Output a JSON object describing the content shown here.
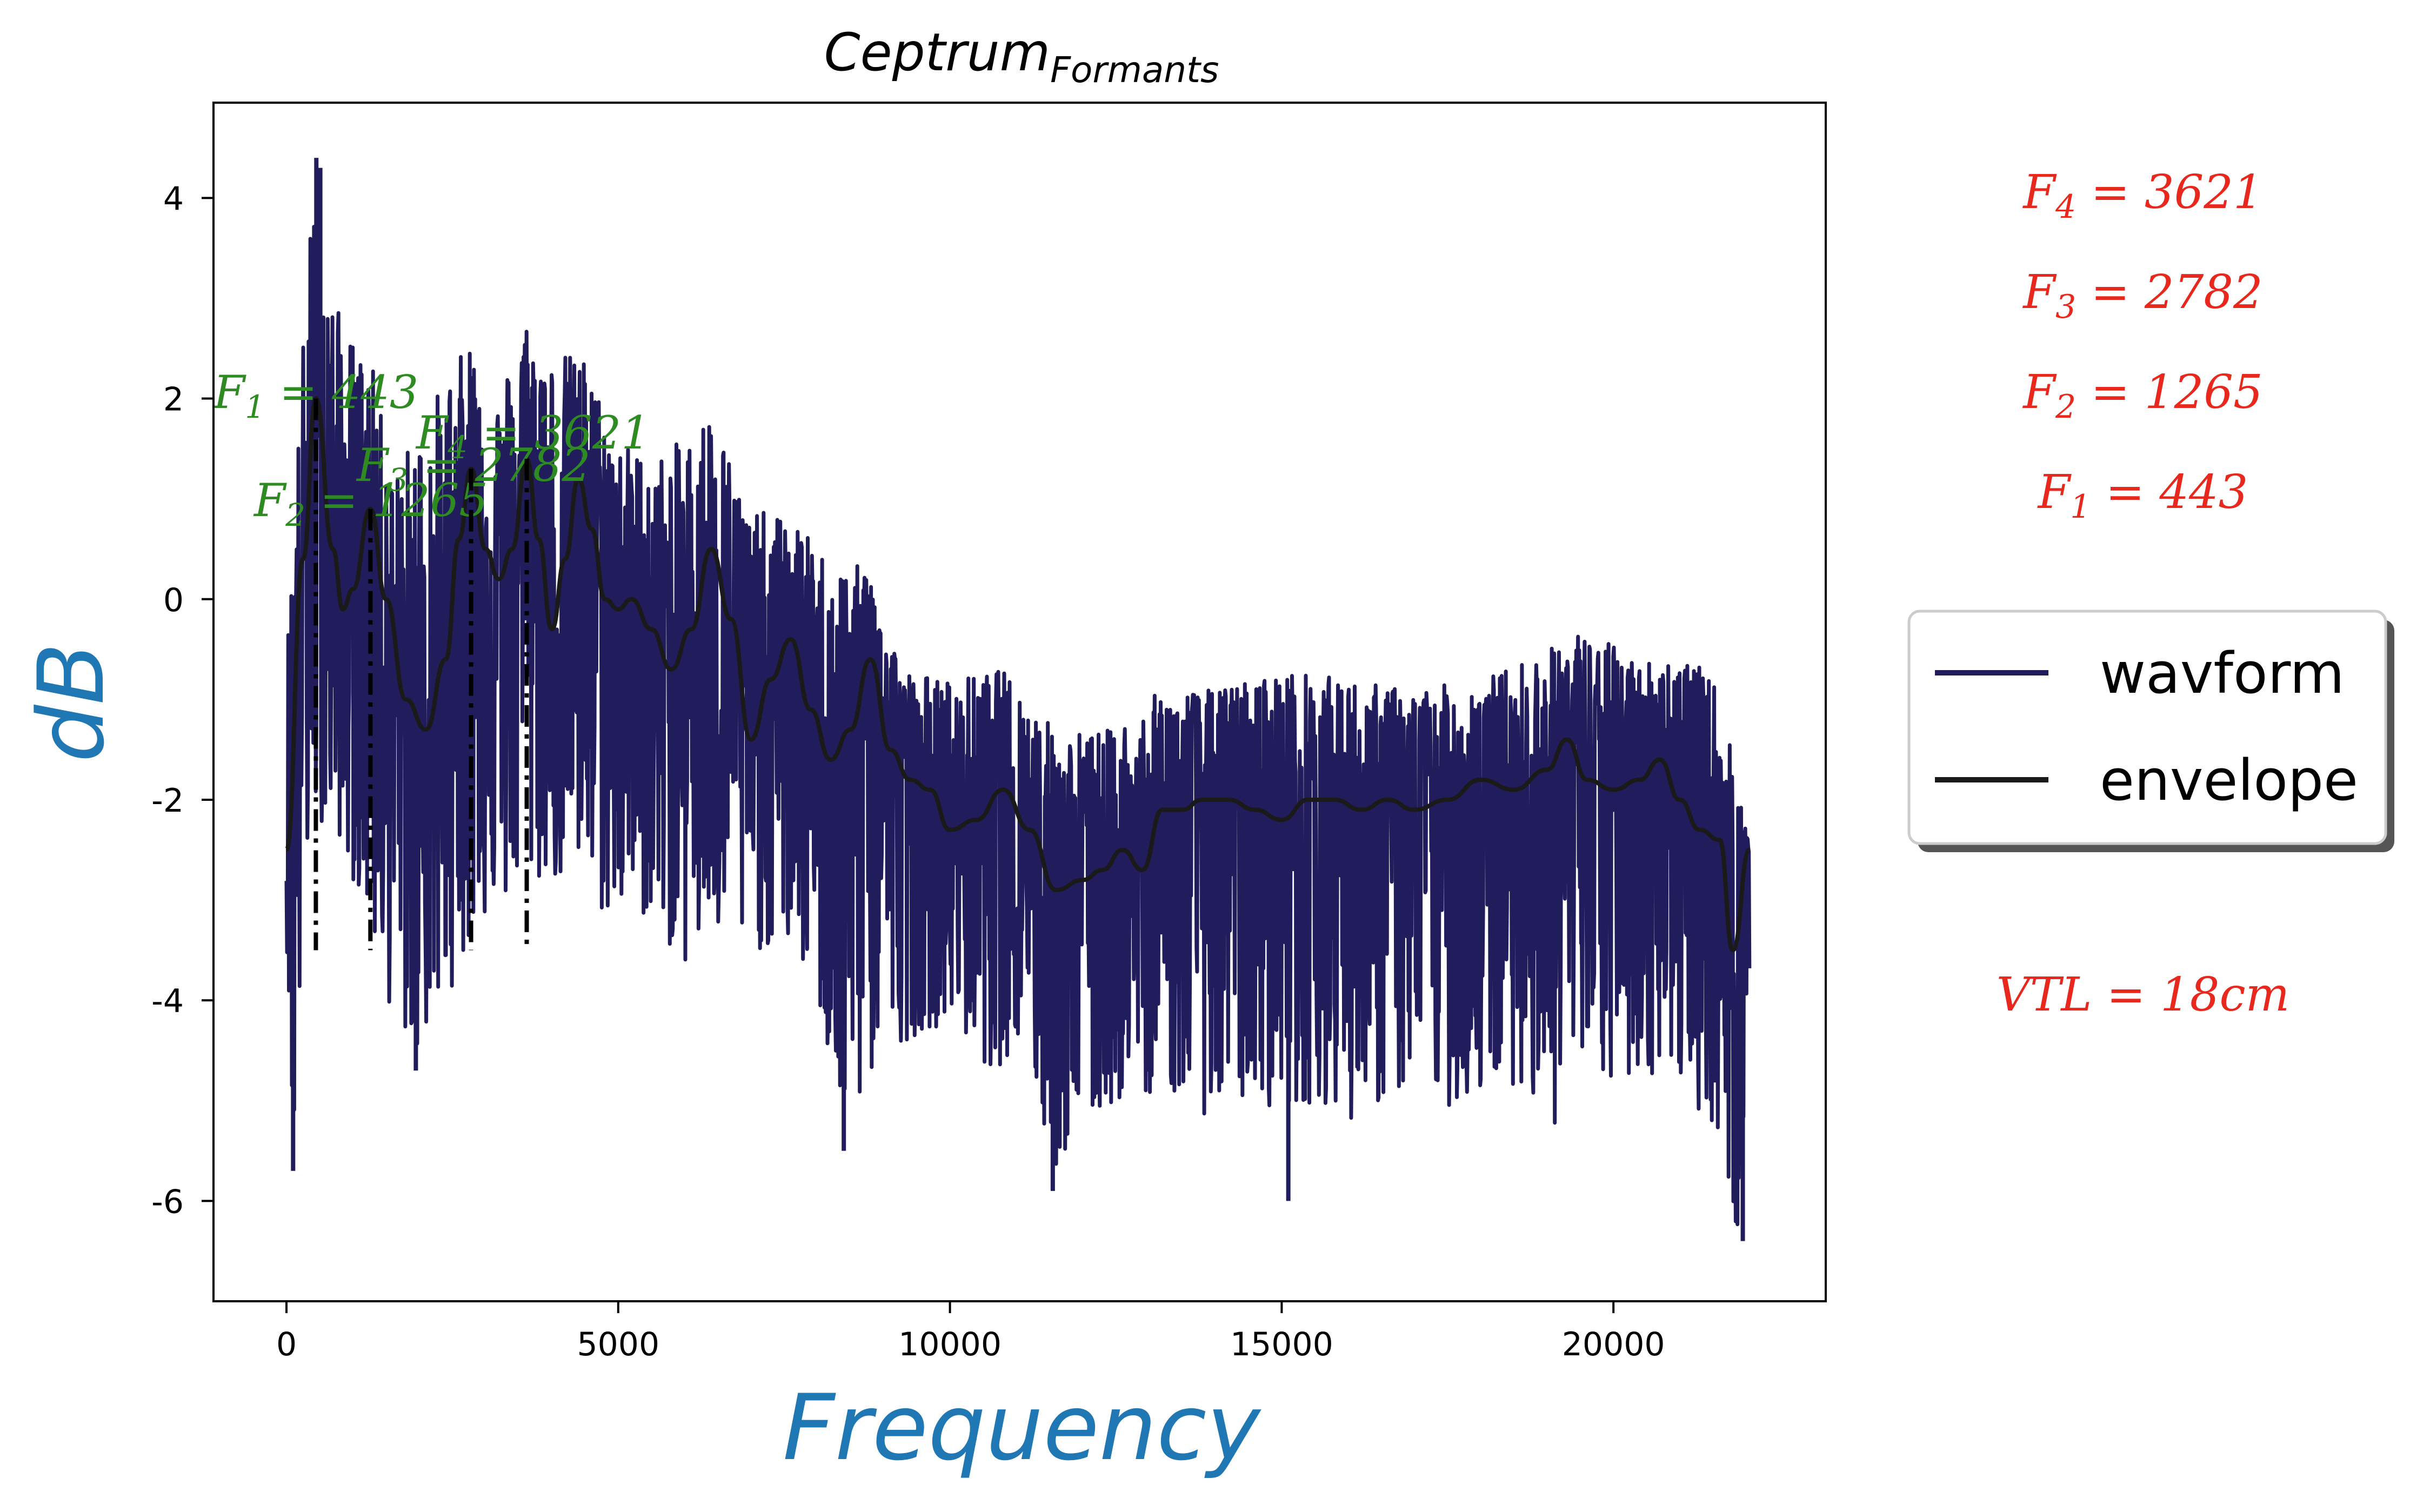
{
  "chart_data": {
    "type": "line",
    "title_main": "Ceptrum",
    "title_sub": "Formants",
    "xlabel": "Frequency",
    "ylabel": "dB",
    "xlim": [
      -1100,
      23200
    ],
    "ylim": [
      -7.0,
      4.95
    ],
    "x_ticks": [
      0,
      5000,
      10000,
      15000,
      20000
    ],
    "x_tick_labels": [
      "0",
      "5000",
      "10000",
      "15000",
      "20000"
    ],
    "y_ticks": [
      4,
      2,
      0,
      -2,
      -4,
      -6
    ],
    "y_tick_labels": [
      "4",
      "2",
      "0",
      "-2",
      "-4",
      "-6"
    ],
    "grid": false,
    "legend_position": "right",
    "colors": {
      "waveform": "#211c5c",
      "envelope": "#1a1a1a",
      "annotation": "#2e8b22",
      "side_text": "#e8281c",
      "axis_label": "#1f77b4"
    },
    "series": [
      {
        "name": "wavform",
        "note_shape": "noisy spectrum around the envelope",
        "upper": [
          [
            0,
            -0.5
          ],
          [
            300,
            3.2
          ],
          [
            450,
            4.4
          ],
          [
            700,
            3.0
          ],
          [
            1000,
            2.6
          ],
          [
            1300,
            2.3
          ],
          [
            1600,
            1.2
          ],
          [
            2000,
            1.8
          ],
          [
            2400,
            2.2
          ],
          [
            2800,
            2.6
          ],
          [
            3100,
            1.9
          ],
          [
            3600,
            2.8
          ],
          [
            4000,
            2.5
          ],
          [
            4500,
            2.4
          ],
          [
            5000,
            1.6
          ],
          [
            5500,
            1.4
          ],
          [
            6000,
            1.6
          ],
          [
            6400,
            1.9
          ],
          [
            7000,
            0.9
          ],
          [
            7600,
            0.8
          ],
          [
            8200,
            0.4
          ],
          [
            8800,
            0.3
          ],
          [
            9300,
            -0.7
          ],
          [
            10000,
            -0.8
          ],
          [
            10800,
            -0.7
          ],
          [
            11600,
            -1.3
          ],
          [
            12400,
            -1.3
          ],
          [
            13200,
            -0.9
          ],
          [
            14000,
            -0.9
          ],
          [
            15000,
            -0.7
          ],
          [
            16000,
            -0.8
          ],
          [
            17000,
            -0.9
          ],
          [
            18000,
            -0.8
          ],
          [
            19000,
            -0.5
          ],
          [
            19500,
            -0.3
          ],
          [
            20500,
            -0.6
          ],
          [
            21000,
            -0.5
          ],
          [
            21500,
            -0.8
          ],
          [
            21800,
            -1.5
          ],
          [
            22050,
            -2.5
          ]
        ],
        "lower": [
          [
            0,
            -3.3
          ],
          [
            100,
            -5.8
          ],
          [
            300,
            -2.9
          ],
          [
            500,
            -2.2
          ],
          [
            800,
            -2.4
          ],
          [
            1200,
            -3.2
          ],
          [
            1500,
            -4.0
          ],
          [
            1900,
            -4.6
          ],
          [
            2200,
            -4.3
          ],
          [
            2600,
            -3.7
          ],
          [
            3000,
            -3.2
          ],
          [
            3500,
            -3.0
          ],
          [
            4000,
            -2.8
          ],
          [
            4800,
            -3.2
          ],
          [
            5500,
            -3.2
          ],
          [
            6000,
            -3.7
          ],
          [
            6500,
            -3.5
          ],
          [
            7000,
            -3.5
          ],
          [
            7600,
            -3.5
          ],
          [
            8000,
            -4.0
          ],
          [
            8400,
            -5.5
          ],
          [
            9000,
            -4.5
          ],
          [
            10000,
            -4.2
          ],
          [
            10600,
            -4.7
          ],
          [
            11200,
            -4.5
          ],
          [
            11500,
            -5.8
          ],
          [
            12000,
            -5.3
          ],
          [
            12600,
            -5.0
          ],
          [
            13200,
            -4.9
          ],
          [
            14000,
            -5.2
          ],
          [
            14500,
            -5.0
          ],
          [
            15000,
            -5.1
          ],
          [
            15600,
            -5.0
          ],
          [
            16000,
            -5.2
          ],
          [
            17000,
            -4.9
          ],
          [
            17600,
            -5.1
          ],
          [
            18600,
            -4.8
          ],
          [
            19000,
            -5.4
          ],
          [
            19500,
            -4.8
          ],
          [
            20000,
            -4.9
          ],
          [
            20800,
            -4.7
          ],
          [
            21200,
            -5.0
          ],
          [
            21600,
            -5.4
          ],
          [
            21900,
            -6.5
          ],
          [
            22050,
            -4.0
          ]
        ],
        "spikes": [
          [
            100,
            -5.7
          ],
          [
            450,
            4.4
          ],
          [
            510,
            4.3
          ],
          [
            11550,
            -5.9
          ],
          [
            15100,
            -6.0
          ],
          [
            21950,
            -6.4
          ],
          [
            8400,
            -5.5
          ],
          [
            1950,
            -4.7
          ]
        ]
      },
      {
        "name": "envelope",
        "x": [
          0,
          250,
          443,
          700,
          850,
          1000,
          1265,
          1500,
          1800,
          2100,
          2400,
          2600,
          2782,
          3000,
          3200,
          3400,
          3621,
          3800,
          4000,
          4200,
          4400,
          4600,
          4800,
          5000,
          5200,
          5500,
          5800,
          6100,
          6400,
          6700,
          7000,
          7300,
          7600,
          7900,
          8200,
          8500,
          8800,
          9100,
          9400,
          9700,
          10000,
          10400,
          10800,
          11200,
          11600,
          12000,
          12300,
          12600,
          12900,
          13200,
          13500,
          13800,
          14200,
          14600,
          15000,
          15400,
          15800,
          16200,
          16600,
          17000,
          17500,
          18000,
          18500,
          19000,
          19300,
          19600,
          20000,
          20400,
          20700,
          21000,
          21300,
          21600,
          21800,
          22050
        ],
        "y": [
          -2.5,
          0.4,
          2.0,
          0.5,
          -0.1,
          0.1,
          0.9,
          0.0,
          -1.0,
          -1.3,
          -0.6,
          0.6,
          1.3,
          0.5,
          0.2,
          0.5,
          1.4,
          0.6,
          -0.3,
          0.4,
          1.2,
          0.7,
          0.0,
          -0.1,
          0.0,
          -0.3,
          -0.7,
          -0.3,
          0.5,
          -0.2,
          -1.4,
          -0.8,
          -0.4,
          -1.1,
          -1.6,
          -1.3,
          -0.6,
          -1.5,
          -1.8,
          -1.9,
          -2.3,
          -2.2,
          -1.9,
          -2.3,
          -2.9,
          -2.8,
          -2.7,
          -2.5,
          -2.7,
          -2.1,
          -2.1,
          -2.0,
          -2.0,
          -2.1,
          -2.2,
          -2.0,
          -2.0,
          -2.1,
          -2.0,
          -2.1,
          -2.0,
          -1.8,
          -1.9,
          -1.7,
          -1.4,
          -1.8,
          -1.9,
          -1.8,
          -1.6,
          -2.0,
          -2.3,
          -2.4,
          -3.5,
          -2.5
        ]
      }
    ],
    "formant_markers": [
      {
        "x": 443,
        "y_top": 2.0,
        "y_bottom": -3.5,
        "label_base": "F",
        "label_sub": "1",
        "label_value": "= 443"
      },
      {
        "x": 1265,
        "y_top": 0.9,
        "y_bottom": -3.5,
        "label_base": "F",
        "label_sub": "2",
        "label_value": "= 1265"
      },
      {
        "x": 2782,
        "y_top": 1.3,
        "y_bottom": -3.5,
        "label_base": "F",
        "label_sub": "3",
        "label_value": "= 2782"
      },
      {
        "x": 3621,
        "y_top": 1.4,
        "y_bottom": -3.5,
        "label_base": "F",
        "label_sub": "4",
        "label_value": "= 3621"
      }
    ]
  },
  "legend": {
    "items": [
      {
        "label": "wavform",
        "color": "#211c5c"
      },
      {
        "label": "envelope",
        "color": "#1a1a1a"
      }
    ]
  },
  "side_panel": {
    "formants": [
      {
        "base": "F",
        "sub": "4",
        "value": "= 3621"
      },
      {
        "base": "F",
        "sub": "3",
        "value": "= 2782"
      },
      {
        "base": "F",
        "sub": "2",
        "value": "= 1265"
      },
      {
        "base": "F",
        "sub": "1",
        "value": "= 443"
      }
    ],
    "vtl": "VTL = 18cm"
  }
}
